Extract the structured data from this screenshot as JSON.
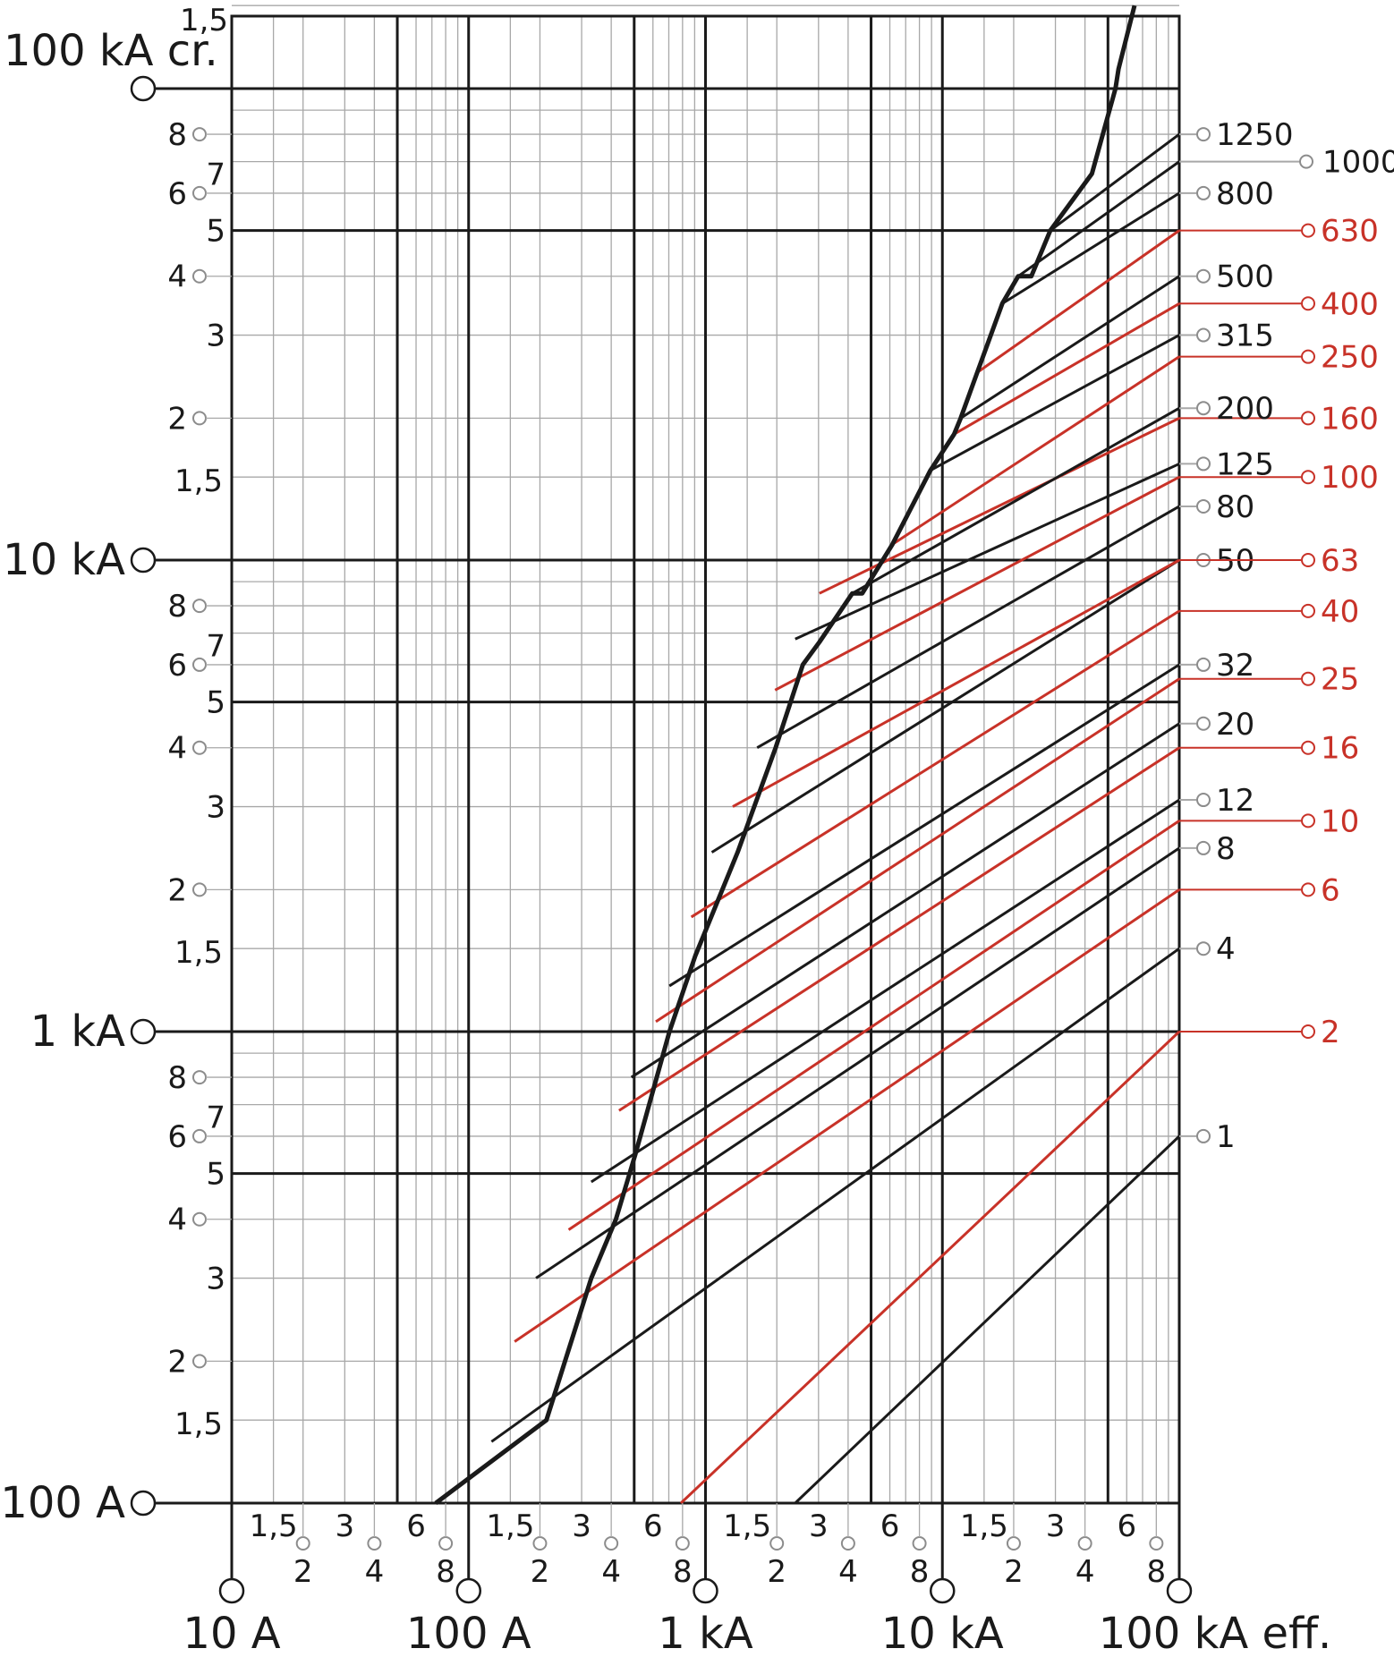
{
  "chart_data": {
    "type": "line",
    "title": "",
    "x_axis": {
      "scale": "log",
      "range": [
        10,
        100000
      ],
      "unit": "A",
      "decade_labels": [
        "10 A",
        "100 A",
        "1 kA",
        "10 kA",
        "100 kA eff."
      ],
      "decade_values": [
        10,
        100,
        1000,
        10000,
        100000
      ],
      "minor_labels": [
        "1,5",
        "2",
        "3",
        "4",
        "6",
        "8"
      ],
      "minor_factors": [
        1.5,
        2,
        3,
        4,
        6,
        8
      ]
    },
    "y_axis": {
      "scale": "log",
      "range": [
        100,
        150000
      ],
      "unit": "A",
      "decade_labels": [
        "100 A",
        "1 kA",
        "10 kA",
        "100 kA cr."
      ],
      "decade_values": [
        100,
        1000,
        10000,
        100000
      ],
      "top_label": "1,5",
      "minor_labels": [
        "1,5",
        "2",
        "3",
        "4",
        "5",
        "6",
        "7",
        "8"
      ],
      "minor_factors": [
        1.5,
        2,
        3,
        4,
        5,
        6,
        7,
        8
      ]
    },
    "grid": true,
    "envelope": {
      "name": "",
      "points": [
        [
          52,
          100
        ],
        [
          230,
          150
        ],
        [
          420,
          300
        ],
        [
          585,
          400
        ],
        [
          760,
          550
        ],
        [
          1200,
          1000
        ],
        [
          1700,
          1450
        ],
        [
          3000,
          2400
        ],
        [
          5000,
          4000
        ],
        [
          7200,
          6000
        ],
        [
          9000,
          6700
        ],
        [
          14000,
          8500
        ],
        [
          16000,
          8500
        ],
        [
          24000,
          10800
        ],
        [
          40000,
          15500
        ],
        [
          55000,
          18500
        ],
        [
          60000,
          20000
        ],
        [
          75000,
          25000
        ],
        [
          105000,
          35000
        ],
        [
          130000,
          40000
        ],
        [
          155000,
          40000
        ],
        [
          200000,
          50000
        ],
        [
          350000,
          66000
        ],
        [
          480000,
          100000
        ],
        [
          500000,
          110000
        ],
        [
          620000,
          150000
        ]
      ]
    },
    "series": [
      {
        "label": "1",
        "color": "black",
        "points": [
          [
            6500,
            100
          ],
          [
            100000,
            600
          ]
        ]
      },
      {
        "label": "2",
        "color": "red",
        "points": [
          [
            1400,
            100
          ],
          [
            100000,
            1000
          ]
        ]
      },
      {
        "label": "4",
        "color": "black",
        "points": [
          [
            110,
            135
          ],
          [
            100000,
            1500
          ]
        ]
      },
      {
        "label": "6",
        "color": "red",
        "points": [
          [
            150,
            220
          ],
          [
            100000,
            2000
          ]
        ]
      },
      {
        "label": "8",
        "color": "black",
        "points": [
          [
            200,
            300
          ],
          [
            100000,
            2450
          ]
        ]
      },
      {
        "label": "10",
        "color": "red",
        "points": [
          [
            310,
            380
          ],
          [
            100000,
            2800
          ]
        ]
      },
      {
        "label": "12",
        "color": "black",
        "points": [
          [
            420,
            480
          ],
          [
            100000,
            3100
          ]
        ]
      },
      {
        "label": "16",
        "color": "red",
        "points": [
          [
            610,
            680
          ],
          [
            100000,
            4000
          ]
        ]
      },
      {
        "label": "20",
        "color": "black",
        "points": [
          [
            720,
            800
          ],
          [
            100000,
            4500
          ]
        ]
      },
      {
        "label": "25",
        "color": "red",
        "points": [
          [
            1000,
            1050
          ],
          [
            100000,
            5600
          ]
        ]
      },
      {
        "label": "32",
        "color": "black",
        "points": [
          [
            1200,
            1250
          ],
          [
            100000,
            6000
          ]
        ]
      },
      {
        "label": "40",
        "color": "red",
        "points": [
          [
            1610,
            1750
          ],
          [
            100000,
            7800
          ]
        ]
      },
      {
        "label": "50",
        "color": "black",
        "points": [
          [
            2120,
            2400
          ],
          [
            100000,
            10000
          ]
        ]
      },
      {
        "label": "63",
        "color": "red",
        "points": [
          [
            2810,
            3000
          ],
          [
            100000,
            10000
          ]
        ]
      },
      {
        "label": "80",
        "color": "black",
        "points": [
          [
            3900,
            4000
          ],
          [
            100000,
            13000
          ]
        ]
      },
      {
        "label": "100",
        "color": "red",
        "points": [
          [
            4960,
            5300
          ],
          [
            100000,
            15000
          ]
        ]
      },
      {
        "label": "125",
        "color": "black",
        "points": [
          [
            6500,
            6800
          ],
          [
            100000,
            16000
          ]
        ]
      },
      {
        "label": "160",
        "color": "red",
        "points": [
          [
            9000,
            8500
          ],
          [
            100000,
            20000
          ]
        ]
      },
      {
        "label": "200",
        "color": "black",
        "points": [
          [
            14000,
            8500
          ],
          [
            100000,
            21000
          ]
        ]
      },
      {
        "label": "250",
        "color": "red",
        "points": [
          [
            24000,
            10800
          ],
          [
            100000,
            27000
          ]
        ]
      },
      {
        "label": "315",
        "color": "black",
        "points": [
          [
            40000,
            15500
          ],
          [
            100000,
            30000
          ]
        ]
      },
      {
        "label": "400",
        "color": "red",
        "points": [
          [
            55000,
            18500
          ],
          [
            100000,
            35000
          ]
        ]
      },
      {
        "label": "500",
        "color": "black",
        "points": [
          [
            60000,
            20000
          ],
          [
            100000,
            40000
          ]
        ]
      },
      {
        "label": "630",
        "color": "red",
        "points": [
          [
            75000,
            25000
          ],
          [
            100000,
            50000
          ]
        ]
      },
      {
        "label": "800",
        "color": "black",
        "points": [
          [
            105000,
            35000
          ],
          [
            100000,
            60000
          ]
        ]
      },
      {
        "label": "1000",
        "color": "black",
        "points": [
          [
            130000,
            40000
          ],
          [
            100000,
            70000
          ]
        ]
      },
      {
        "label": "1250",
        "color": "black",
        "points": [
          [
            200000,
            50000
          ],
          [
            100000,
            80000
          ]
        ]
      }
    ]
  },
  "colors": {
    "red": "#c83228",
    "black": "#1a1a1a",
    "grid": "#a8a8a8",
    "marker": "#8c8c8c"
  }
}
